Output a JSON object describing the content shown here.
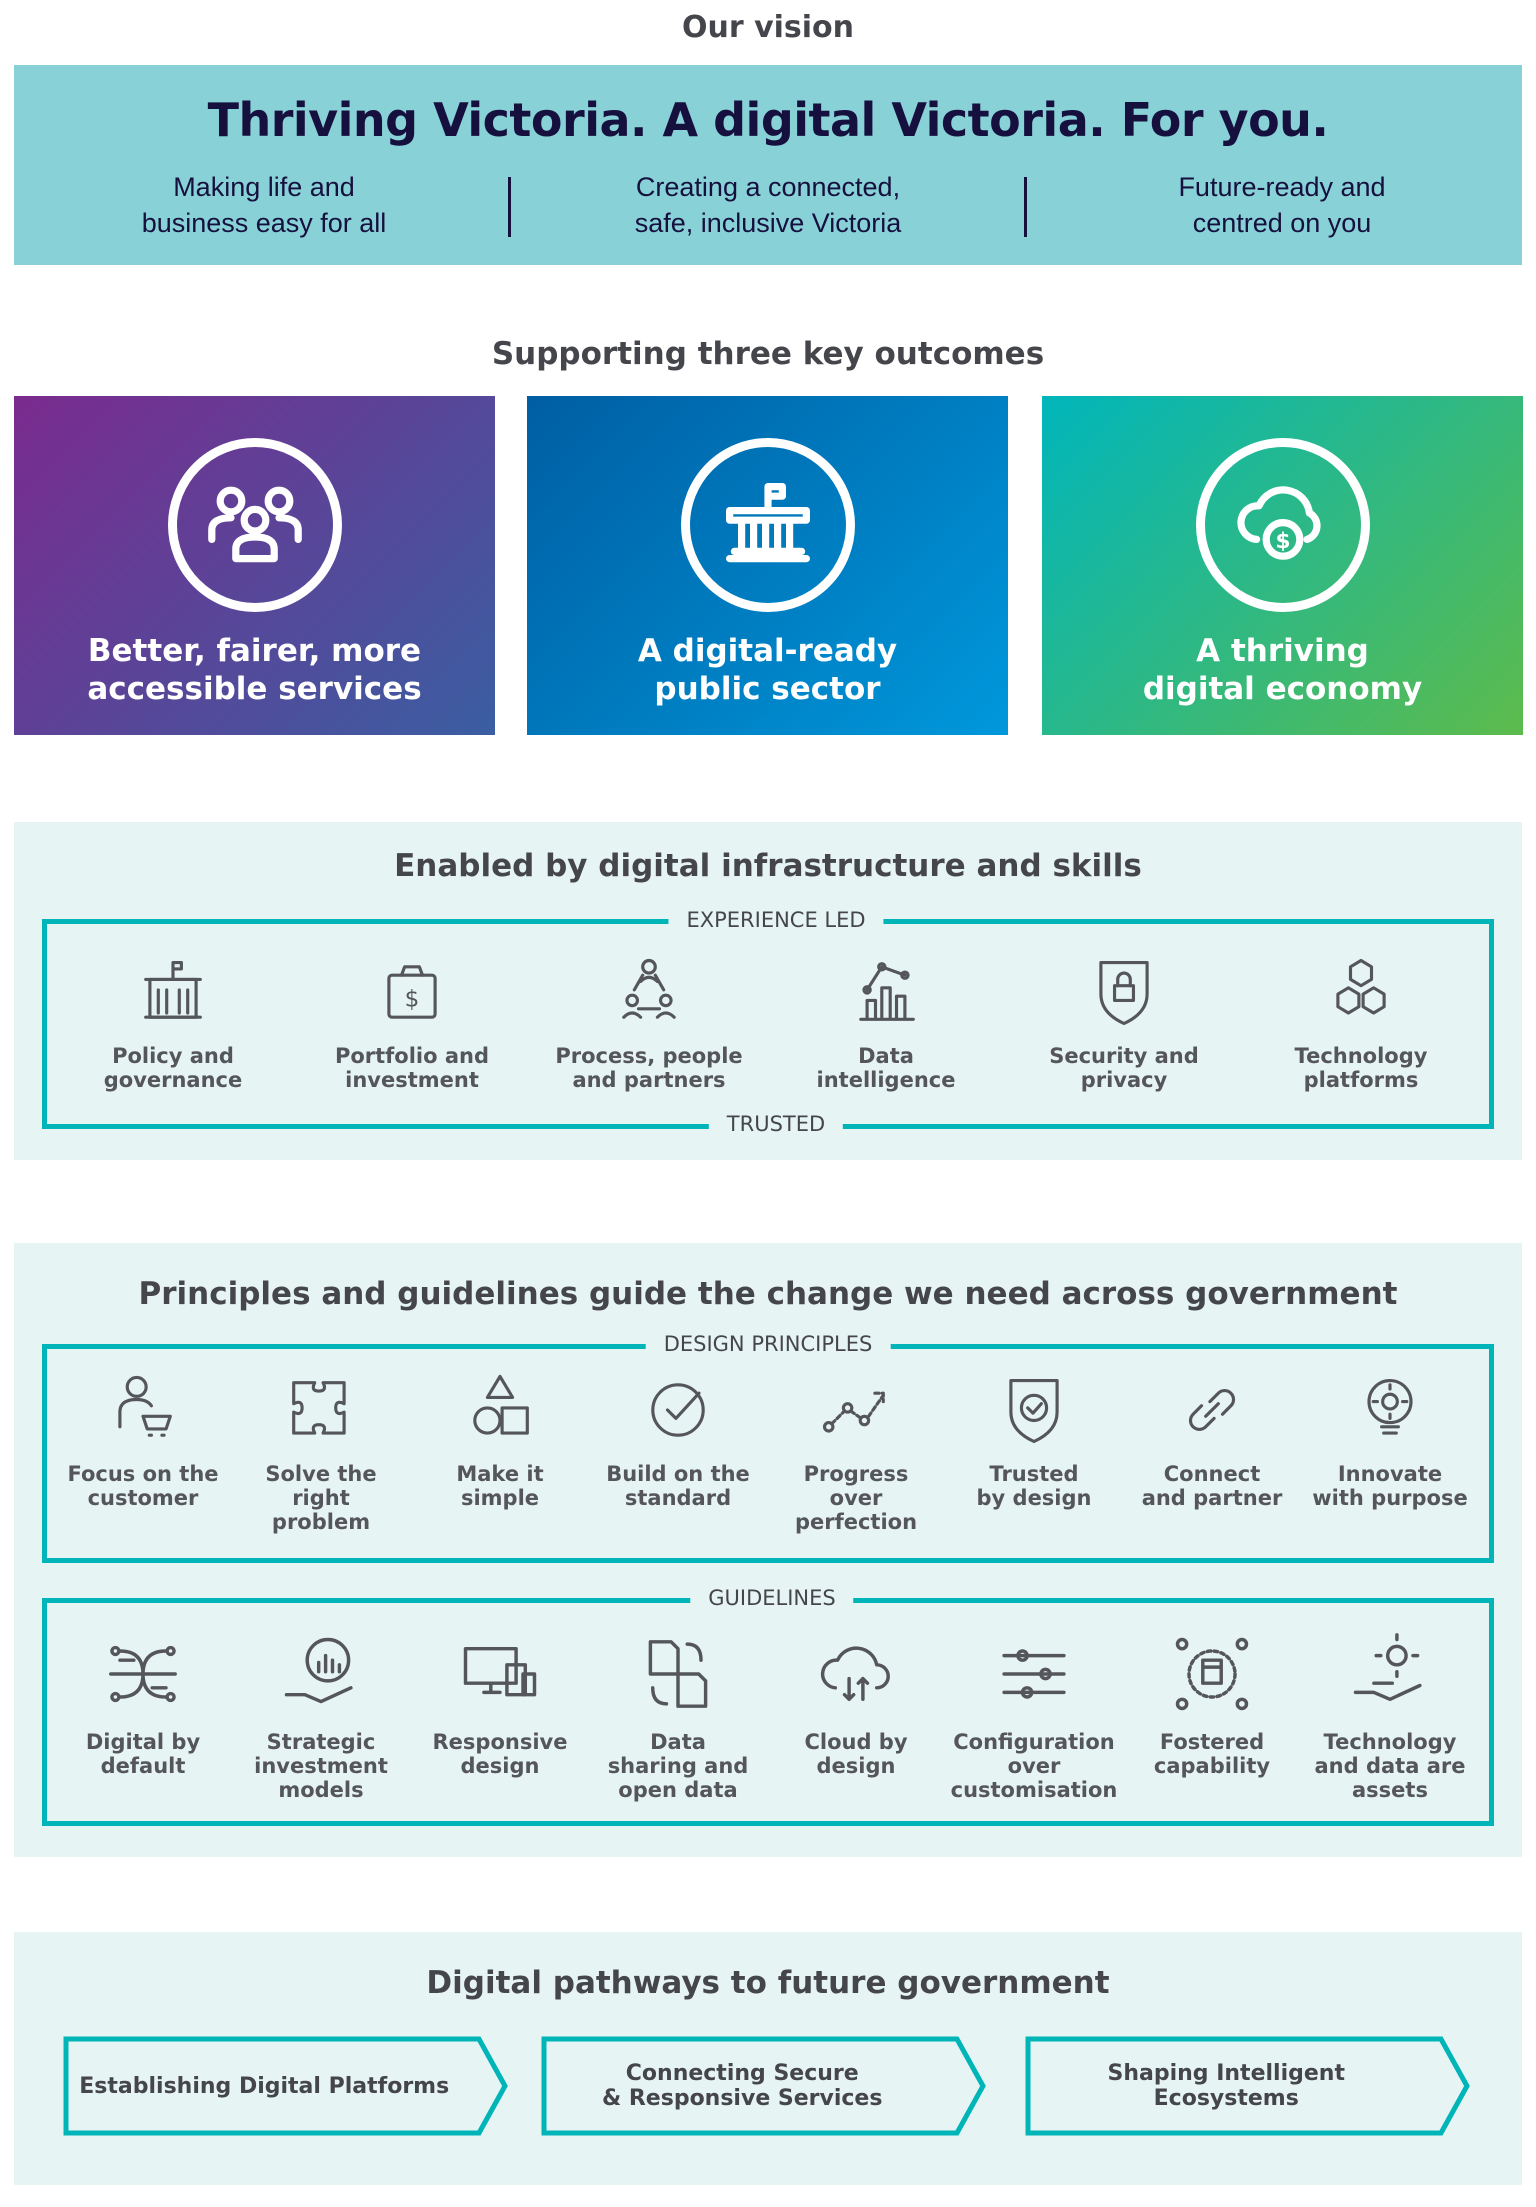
{
  "vision": {
    "heading": "Our vision",
    "title": "Thriving Victoria. A digital Victoria. For you.",
    "pillars": [
      "Making life and\nbusiness easy for all",
      "Creating a connected,\nsafe, inclusive Victoria",
      "Future-ready and\ncentred on you"
    ]
  },
  "outcomes": {
    "heading": "Supporting three key outcomes",
    "cards": [
      {
        "label": "Better, fairer, more\naccessible services",
        "icon": "people-group-icon",
        "from": "#7a2b8e",
        "to": "#3a5ea2"
      },
      {
        "label": "A digital-ready\npublic sector",
        "icon": "government-building-icon",
        "from": "#005ea3",
        "to": "#0098db"
      },
      {
        "label": "A thriving\ndigital economy",
        "icon": "cloud-dollar-icon",
        "from": "#00b6bb",
        "to": "#5dbb4c"
      }
    ]
  },
  "infrastructure": {
    "heading": "Enabled by digital infrastructure and skills",
    "top_label": "EXPERIENCE LED",
    "bottom_label": "TRUSTED",
    "items": [
      {
        "label": "Policy and\ngovernance",
        "icon": "building-flag-icon"
      },
      {
        "label": "Portfolio and\ninvestment",
        "icon": "money-bag-icon"
      },
      {
        "label": "Process, people\nand partners",
        "icon": "people-network-icon"
      },
      {
        "label": "Data\nintelligence",
        "icon": "bar-chart-icon"
      },
      {
        "label": "Security and\nprivacy",
        "icon": "shield-lock-icon"
      },
      {
        "label": "Technology\nplatforms",
        "icon": "cubes-icon"
      }
    ]
  },
  "principles": {
    "heading": "Principles and guidelines guide the change we need across government",
    "design_label": "DESIGN PRINCIPLES",
    "design": [
      {
        "label": "Focus on the\ncustomer",
        "icon": "customer-cart-icon"
      },
      {
        "label": "Solve the\nright\nproblem",
        "icon": "puzzle-icon"
      },
      {
        "label": "Make it\nsimple",
        "icon": "shapes-icon"
      },
      {
        "label": "Build on the\nstandard",
        "icon": "check-circle-icon"
      },
      {
        "label": "Progress\nover\nperfection",
        "icon": "trend-arrow-icon"
      },
      {
        "label": "Trusted\nby design",
        "icon": "shield-check-icon"
      },
      {
        "label": "Connect\nand partner",
        "icon": "link-icon"
      },
      {
        "label": "Innovate\nwith purpose",
        "icon": "lightbulb-gear-icon"
      }
    ],
    "guidelines_label": "GUIDELINES",
    "guidelines": [
      {
        "label": "Digital by\ndefault",
        "icon": "circuit-icon"
      },
      {
        "label": "Strategic\ninvestment\nmodels",
        "icon": "hand-chart-icon"
      },
      {
        "label": "Responsive\ndesign",
        "icon": "devices-icon"
      },
      {
        "label": "Data\nsharing and\nopen data",
        "icon": "file-exchange-icon"
      },
      {
        "label": "Cloud by\ndesign",
        "icon": "cloud-sync-icon"
      },
      {
        "label": "Configuration\nover\ncustomisation",
        "icon": "sliders-icon"
      },
      {
        "label": "Fostered\ncapability",
        "icon": "fist-network-icon"
      },
      {
        "label": "Technology\nand data are\nassets",
        "icon": "hand-gear-icon"
      }
    ]
  },
  "pathways": {
    "heading": "Digital pathways to future government",
    "steps": [
      "Establishing Digital Platforms",
      "Connecting Secure\n& Responsive Services",
      "Shaping Intelligent Ecosystems"
    ]
  },
  "colors": {
    "accent": "#00b5b8",
    "band": "#88d1d6",
    "section_bg": "#e7f4f4",
    "navy": "#16103f"
  }
}
